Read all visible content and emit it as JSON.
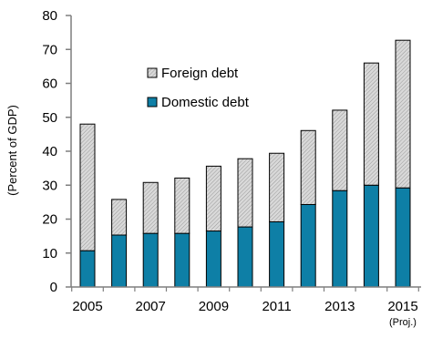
{
  "chart_data": {
    "type": "bar",
    "stacked": true,
    "ylabel": "(Percent of GDP)",
    "ylim": [
      0,
      80
    ],
    "yticks": [
      0,
      10,
      20,
      30,
      40,
      50,
      60,
      70,
      80
    ],
    "categories": [
      "2005",
      "2006",
      "2007",
      "2008",
      "2009",
      "2010",
      "2011",
      "2012",
      "2013",
      "2014",
      "2015"
    ],
    "x_tick_labels": [
      "2005",
      "2007",
      "2009",
      "2011",
      "2013",
      "2015"
    ],
    "x_note": "(Proj.)",
    "series": [
      {
        "name": "Domestic debt",
        "color": "#0e7fa6",
        "values": [
          10.7,
          15.3,
          15.8,
          15.8,
          16.5,
          17.7,
          19.2,
          24.3,
          28.4,
          30.0,
          29.2
        ]
      },
      {
        "name": "Foreign debt",
        "color": "#c8c8c8",
        "pattern": "hatched",
        "values": [
          37.3,
          10.5,
          15.0,
          16.3,
          19.1,
          20.1,
          20.2,
          21.8,
          23.7,
          36.0,
          43.5
        ]
      }
    ],
    "legend": {
      "position": "top-left",
      "order": [
        "Foreign debt",
        "Domestic debt"
      ]
    },
    "grid": false
  }
}
